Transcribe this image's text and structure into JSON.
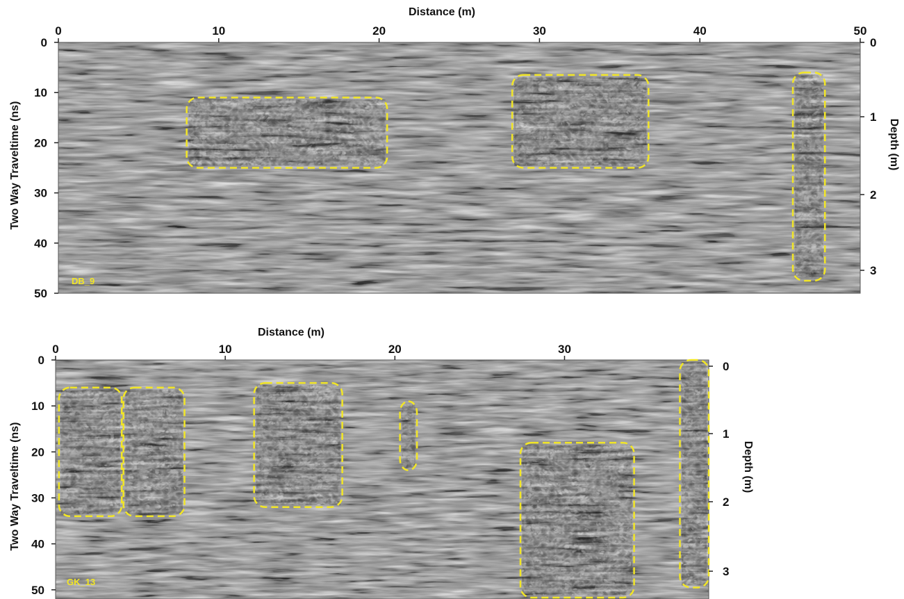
{
  "panels": [
    {
      "id": "DB_9",
      "label": "DB_9",
      "x_axis": {
        "label": "Distance (m)",
        "ticks": [
          "0",
          "10",
          "20",
          "30",
          "40",
          "50"
        ],
        "range": [
          0,
          50
        ]
      },
      "y_axis_left": {
        "label": "Two Way Traveltime (ns)",
        "ticks": [
          "0",
          "10",
          "20",
          "30",
          "40",
          "50"
        ],
        "range": [
          0,
          50
        ]
      },
      "y_axis_right": {
        "label": "Depth (m)",
        "ticks": [
          "0",
          "1",
          "2",
          "3"
        ]
      },
      "anomaly_boxes": [
        {
          "x": [
            8,
            20.5
          ],
          "t": [
            11,
            25
          ]
        },
        {
          "x": [
            28.3,
            36.8
          ],
          "t": [
            6.5,
            25
          ]
        },
        {
          "x": [
            45.8,
            47.8
          ],
          "t": [
            6,
            47.5
          ]
        }
      ]
    },
    {
      "id": "GK_13",
      "label": "GK_13",
      "x_axis": {
        "label": "Distance (m)",
        "ticks": [
          "0",
          "10",
          "20",
          "30"
        ],
        "range": [
          0,
          38.5
        ]
      },
      "y_axis_left": {
        "label": "Two Way Traveltime (ns)",
        "ticks": [
          "0",
          "10",
          "20",
          "30",
          "40",
          "50"
        ],
        "range": [
          0,
          52
        ]
      },
      "y_axis_right": {
        "label": "Depth (m)",
        "ticks": [
          "0",
          "1",
          "2",
          "3"
        ]
      },
      "anomaly_boxes": [
        {
          "x": [
            0.2,
            3.9
          ],
          "t": [
            6,
            34
          ]
        },
        {
          "x": [
            4.0,
            7.6
          ],
          "t": [
            6,
            34
          ]
        },
        {
          "x": [
            11.7,
            16.9
          ],
          "t": [
            5,
            32
          ]
        },
        {
          "x": [
            20.3,
            21.3
          ],
          "t": [
            9,
            24
          ]
        },
        {
          "x": [
            27.4,
            34.1
          ],
          "t": [
            18,
            53
          ]
        },
        {
          "x": [
            36.8,
            38.5
          ],
          "t": [
            0,
            49.5
          ]
        }
      ]
    }
  ],
  "colors": {
    "box": "#f2e626",
    "label": "#f2e626",
    "text": "#111111"
  }
}
